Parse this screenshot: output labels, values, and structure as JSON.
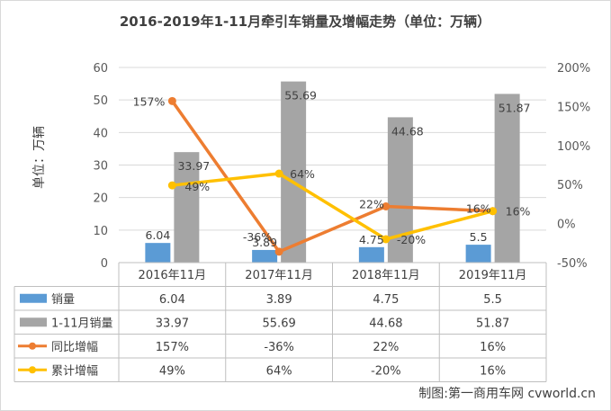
{
  "chart_data": {
    "type": "bar",
    "title": "2016-2019年1-11月牵引车销量及增幅走势（单位：万辆）",
    "ylabel": "单位：万辆",
    "categories": [
      "2016年11月",
      "2017年11月",
      "2018年11月",
      "2019年11月"
    ],
    "ylim": [
      0,
      60
    ],
    "y_ticks": [
      "0",
      "10",
      "20",
      "30",
      "40",
      "50",
      "60"
    ],
    "y2lim": [
      -50,
      200
    ],
    "y2_ticks": [
      "-50%",
      "0%",
      "50%",
      "100%",
      "150%",
      "200%"
    ],
    "grid": true,
    "legend": "table",
    "series": [
      {
        "name": "销量",
        "type": "bar",
        "axis": "left",
        "color": "#5b9bd5",
        "values": [
          6.04,
          3.89,
          4.75,
          5.5
        ],
        "labels": [
          "6.04",
          "3.89",
          "4.75",
          "5.5"
        ]
      },
      {
        "name": "1-11月销量",
        "type": "bar",
        "axis": "left",
        "color": "#a5a5a5",
        "values": [
          33.97,
          55.69,
          44.68,
          51.87
        ],
        "labels": [
          "33.97",
          "55.69",
          "44.68",
          "51.87"
        ]
      },
      {
        "name": "同比增幅",
        "type": "line",
        "axis": "right",
        "color": "#ed7d31",
        "values": [
          157,
          -36,
          22,
          16
        ],
        "labels": [
          "157%",
          "-36%",
          "22%",
          "16%"
        ]
      },
      {
        "name": "累计增幅",
        "type": "line",
        "axis": "right",
        "color": "#ffc000",
        "values": [
          49,
          64,
          -20,
          16
        ],
        "labels": [
          "49%",
          "64%",
          "-20%",
          "16%"
        ]
      }
    ],
    "table": {
      "rows": [
        [
          "6.04",
          "3.89",
          "4.75",
          "5.5"
        ],
        [
          "33.97",
          "55.69",
          "44.68",
          "51.87"
        ],
        [
          "157%",
          "-36%",
          "22%",
          "16%"
        ],
        [
          "49%",
          "64%",
          "-20%",
          "16%"
        ]
      ]
    },
    "credit": "制图:第一商用车网 cvworld.cn"
  }
}
